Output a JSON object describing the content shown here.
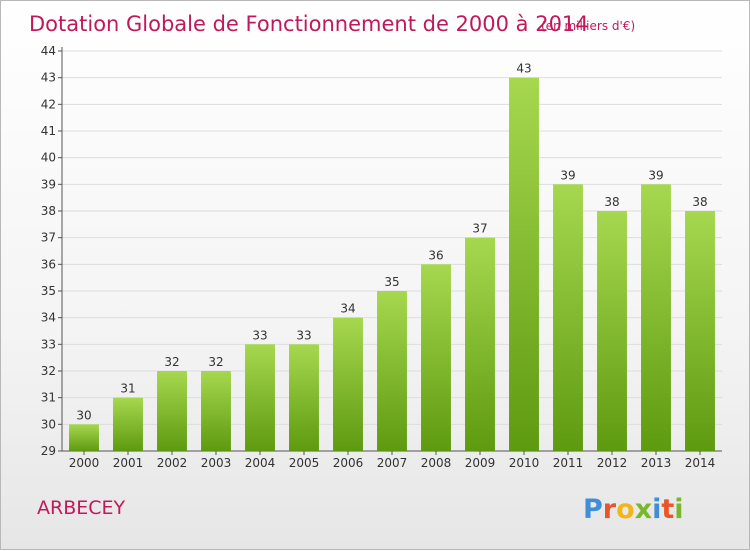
{
  "title": "Dotation Globale de Fonctionnement de 2000 à 2014",
  "unit": "(en milliers d'€)",
  "commune": "ARBECEY",
  "brand": {
    "letters": [
      "P",
      "r",
      "o",
      "x",
      "i",
      "t",
      "i"
    ],
    "colors": [
      "#3f8fd8",
      "#e8552b",
      "#f2b61b",
      "#78b82a",
      "#3f8fd8",
      "#e8552b",
      "#78b82a"
    ]
  },
  "colors": {
    "bar_top": "#a6d84f",
    "bar_bottom": "#5e9a10",
    "title": "#c2185b",
    "grid": "#dddddd"
  },
  "chart_data": {
    "type": "bar",
    "categories": [
      "2000",
      "2001",
      "2002",
      "2003",
      "2004",
      "2005",
      "2006",
      "2007",
      "2008",
      "2009",
      "2010",
      "2011",
      "2012",
      "2013",
      "2014"
    ],
    "values": [
      30,
      31,
      32,
      32,
      33,
      33,
      34,
      35,
      36,
      37,
      43,
      39,
      38,
      39,
      38
    ],
    "ylim": [
      29,
      44
    ],
    "yticks": [
      29,
      30,
      31,
      32,
      33,
      34,
      35,
      36,
      37,
      38,
      39,
      40,
      41,
      42,
      43,
      44
    ],
    "grid": true,
    "legend": "none",
    "xlabel": "",
    "ylabel": ""
  }
}
